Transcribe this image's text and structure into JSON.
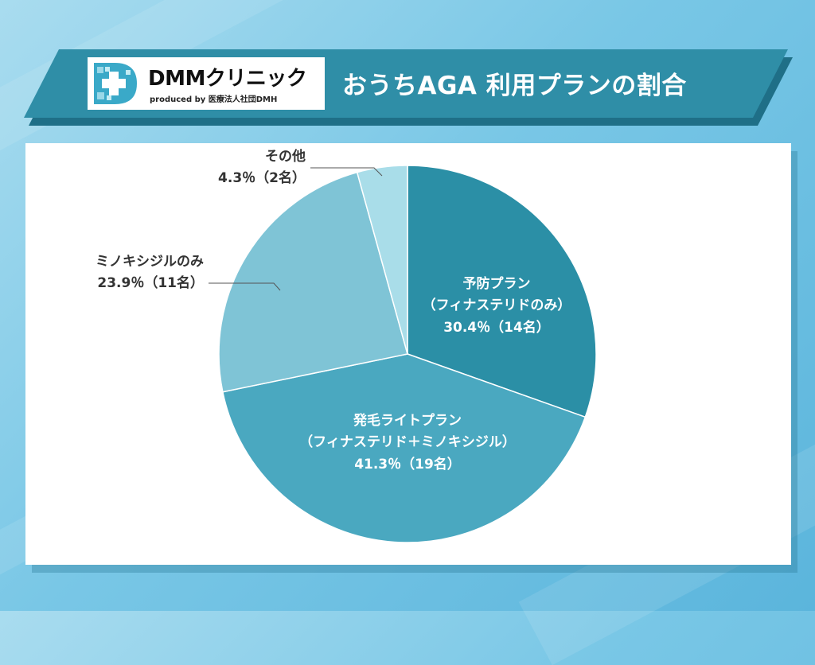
{
  "header": {
    "logo_name": "DMMクリニック",
    "logo_sub": "produced by 医療法人社団DMH",
    "title": "おうちAGA 利用プランの割合"
  },
  "colors": {
    "banner": "#2f8ea7",
    "slice_yobou": "#2b8fa6",
    "slice_hatsumou": "#4aa8c0",
    "slice_minox": "#7fc4d6",
    "slice_other": "#a9dde9"
  },
  "chart_data": {
    "type": "pie",
    "title": "おうちAGA 利用プランの割合",
    "slices": [
      {
        "label": "予防プラン",
        "sublabel": "（フィナステリドのみ）",
        "value_label": "30.4％（14名）",
        "percent": 30.4,
        "count": 14,
        "color": "#2b8fa6",
        "label_position": "inside"
      },
      {
        "label": "発毛ライトプラン",
        "sublabel": "（フィナステリド＋ミノキシジル）",
        "value_label": "41.3％（19名）",
        "percent": 41.3,
        "count": 19,
        "color": "#4aa8c0",
        "label_position": "inside"
      },
      {
        "label": "ミノキシジルのみ",
        "sublabel": "",
        "value_label": "23.9％（11名）",
        "percent": 23.9,
        "count": 11,
        "color": "#7fc4d6",
        "label_position": "outside"
      },
      {
        "label": "その他",
        "sublabel": "",
        "value_label": "4.3％（2名）",
        "percent": 4.3,
        "count": 2,
        "color": "#a9dde9",
        "label_position": "outside"
      }
    ]
  }
}
